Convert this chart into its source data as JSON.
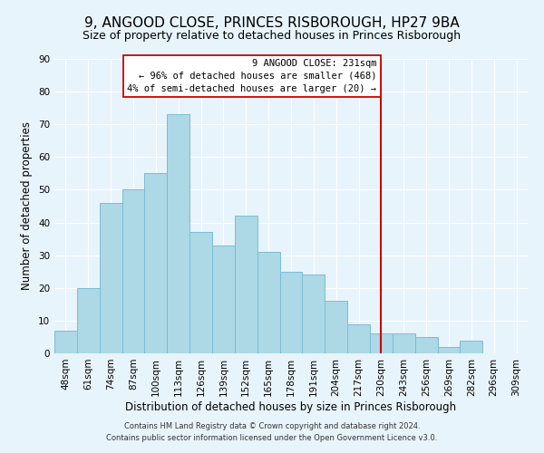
{
  "title": "9, ANGOOD CLOSE, PRINCES RISBOROUGH, HP27 9BA",
  "subtitle": "Size of property relative to detached houses in Princes Risborough",
  "xlabel": "Distribution of detached houses by size in Princes Risborough",
  "ylabel": "Number of detached properties",
  "bar_labels": [
    "48sqm",
    "61sqm",
    "74sqm",
    "87sqm",
    "100sqm",
    "113sqm",
    "126sqm",
    "139sqm",
    "152sqm",
    "165sqm",
    "178sqm",
    "191sqm",
    "204sqm",
    "217sqm",
    "230sqm",
    "243sqm",
    "256sqm",
    "269sqm",
    "282sqm",
    "296sqm",
    "309sqm"
  ],
  "bar_values": [
    7,
    20,
    46,
    50,
    55,
    73,
    37,
    33,
    42,
    31,
    25,
    24,
    16,
    9,
    6,
    6,
    5,
    2,
    4,
    0,
    0
  ],
  "bar_color": "#add8e6",
  "bar_edge_color": "#7bbcd5",
  "vline_color": "#cc0000",
  "ylim": [
    0,
    90
  ],
  "yticks": [
    0,
    10,
    20,
    30,
    40,
    50,
    60,
    70,
    80,
    90
  ],
  "annotation_title": "9 ANGOOD CLOSE: 231sqm",
  "annotation_line1": "← 96% of detached houses are smaller (468)",
  "annotation_line2": "4% of semi-detached houses are larger (20) →",
  "footer_line1": "Contains HM Land Registry data © Crown copyright and database right 2024.",
  "footer_line2": "Contains public sector information licensed under the Open Government Licence v3.0.",
  "bg_color": "#e8f4fc",
  "title_fontsize": 11,
  "subtitle_fontsize": 9,
  "axis_label_fontsize": 8.5,
  "tick_fontsize": 7.5,
  "footer_fontsize": 6
}
